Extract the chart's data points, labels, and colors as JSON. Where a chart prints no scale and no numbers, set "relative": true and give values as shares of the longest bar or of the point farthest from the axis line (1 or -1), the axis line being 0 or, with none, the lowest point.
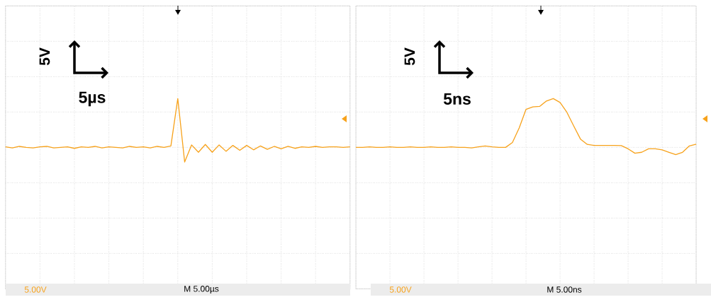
{
  "chart_data": [
    {
      "type": "line",
      "relative": true,
      "grid": true,
      "tick_labels": false,
      "categories": [
        null,
        null,
        null,
        null,
        null,
        null,
        null,
        null,
        null,
        null,
        null,
        null,
        null,
        null,
        null,
        null,
        null,
        null,
        null,
        null,
        null,
        null,
        null,
        null,
        null,
        null,
        null,
        null,
        null,
        null,
        null,
        null,
        null,
        null,
        null,
        null,
        null,
        null,
        null,
        null,
        null,
        null,
        null,
        null,
        null,
        null,
        null,
        null,
        null,
        null,
        null
      ],
      "series": [
        {
          "color": "#f7a21b",
          "values": [
            0.01,
            -0.01,
            0.02,
            0,
            -0.01,
            0.01,
            0.02,
            -0.01,
            0,
            0.01,
            -0.02,
            0.01,
            0,
            0.02,
            -0.01,
            0.01,
            0,
            -0.01,
            0.02,
            0,
            0.01,
            -0.01,
            0.02,
            0,
            0.03,
            1,
            -0.3,
            0.05,
            -0.1,
            0.06,
            -0.1,
            0.05,
            -0.08,
            0.04,
            -0.06,
            0.04,
            -0.05,
            0.03,
            -0.04,
            0.02,
            -0.03,
            0.02,
            -0.02,
            0.01,
            0,
            0.02,
            0,
            0.01,
            0.01,
            0,
            0.01
          ]
        }
      ],
      "annotations": [
        "5V",
        "5µs",
        "5.00V",
        "M 5.00µs"
      ]
    },
    {
      "type": "line",
      "relative": true,
      "grid": true,
      "tick_labels": false,
      "categories": [
        null,
        null,
        null,
        null,
        null,
        null,
        null,
        null,
        null,
        null,
        null,
        null,
        null,
        null,
        null,
        null,
        null,
        null,
        null,
        null,
        null,
        null,
        null,
        null,
        null,
        null,
        null,
        null,
        null,
        null,
        null,
        null,
        null,
        null,
        null,
        null,
        null,
        null,
        null,
        null,
        null,
        null,
        null,
        null,
        null,
        null,
        null,
        null,
        null,
        null,
        null
      ],
      "series": [
        {
          "color": "#f7a21b",
          "values": [
            0,
            0,
            0.01,
            0,
            0,
            0.01,
            0,
            0,
            0.01,
            0,
            0,
            0.01,
            0,
            0,
            0.01,
            0,
            0,
            -0.01,
            0.01,
            0.03,
            0.01,
            0,
            0,
            0.1,
            0.4,
            0.78,
            0.83,
            0.84,
            0.95,
            1.0,
            0.92,
            0.72,
            0.44,
            0.17,
            0.06,
            0.04,
            0.04,
            0.04,
            0.04,
            0.035,
            -0.03,
            -0.12,
            -0.1,
            -0.03,
            -0.03,
            -0.05,
            -0.1,
            -0.15,
            -0.1,
            0.03,
            0.065
          ]
        }
      ],
      "annotations": [
        "5V",
        "5ns",
        "5.00V",
        "M 5.00ns"
      ]
    }
  ]
}
